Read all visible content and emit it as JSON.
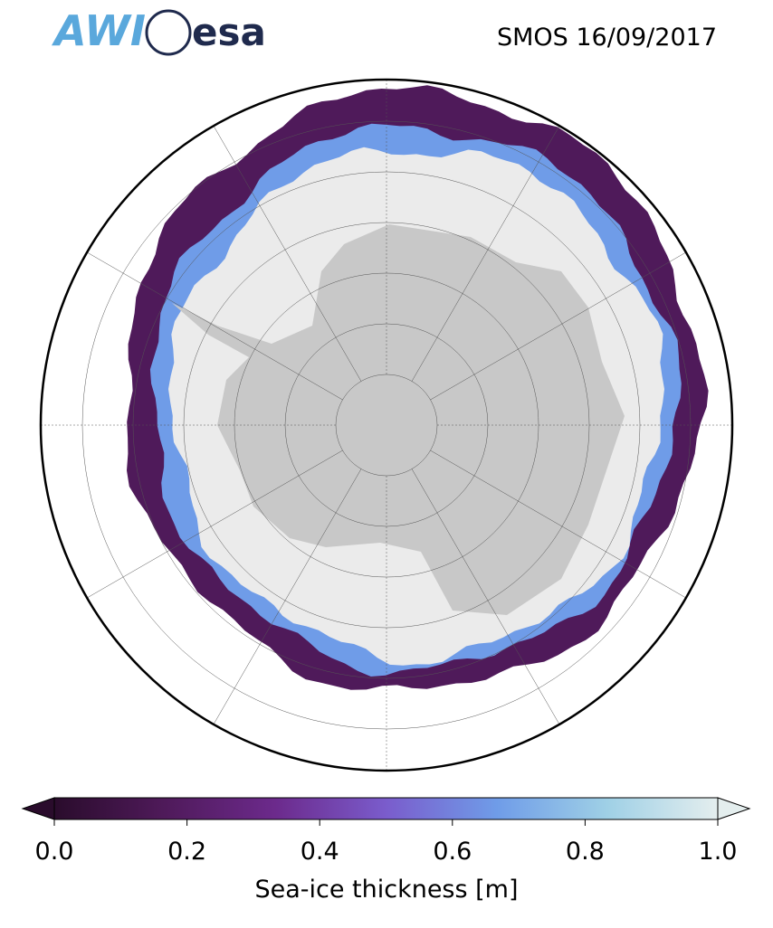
{
  "header": {
    "logos": [
      "AWI",
      "esa"
    ],
    "title": "SMOS 16/09/2017"
  },
  "colorbar": {
    "label": "Sea-ice thickness [m]",
    "clim": [
      0,
      1
    ],
    "ticks": [
      {
        "value": 0,
        "label": "0.0"
      },
      {
        "value": 0.2,
        "label": "0.2"
      },
      {
        "value": 0.4,
        "label": "0.4"
      },
      {
        "value": 0.6,
        "label": "0.6"
      },
      {
        "value": 0.8,
        "label": "0.8"
      },
      {
        "value": 1,
        "label": "1.0"
      }
    ],
    "colormap": [
      "#2a0c2c",
      "#4f1a5a",
      "#6c2a8c",
      "#7a5ccc",
      "#6f9ce8",
      "#9fd0e6",
      "#e4eeee"
    ]
  }
}
